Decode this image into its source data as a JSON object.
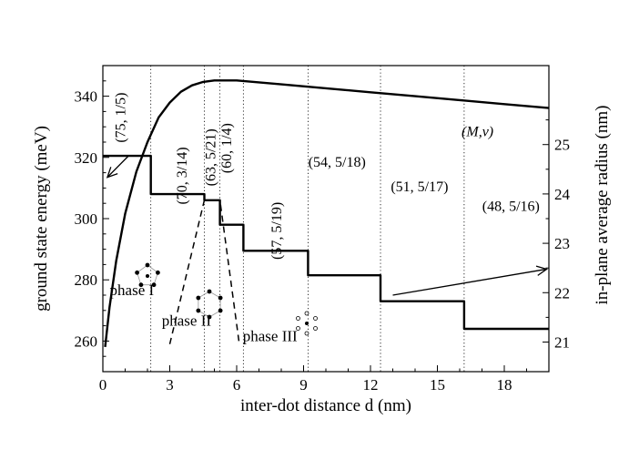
{
  "chart_data": {
    "type": "line",
    "xlabel": "inter-dot distance d (nm)",
    "ylabel": "ground state energy (meV)",
    "y2label": "in-plane average radius (nm)",
    "xlim": [
      0,
      20
    ],
    "ylim": [
      250,
      350
    ],
    "y2lim": [
      20.4,
      26.6
    ],
    "x_ticks": [
      0,
      3,
      6,
      9,
      12,
      15,
      18
    ],
    "y_ticks": [
      260,
      280,
      300,
      320,
      340
    ],
    "y2_ticks": [
      21,
      22,
      23,
      24,
      25
    ],
    "x_tick_labels": [
      "0",
      "3",
      "6",
      "9",
      "12",
      "15",
      "18"
    ],
    "y_tick_labels": [
      "260",
      "280",
      "300",
      "320",
      "340"
    ],
    "y2_tick_labels": [
      "21",
      "22",
      "23",
      "24",
      "25"
    ],
    "series": [
      {
        "axis": "left",
        "style": "step",
        "values": [
          {
            "x": 0.0,
            "y": 320.5
          },
          {
            "x": 2.15,
            "y": 320.5
          },
          {
            "x": 2.15,
            "y": 308
          },
          {
            "x": 4.55,
            "y": 308
          },
          {
            "x": 4.55,
            "y": 306
          },
          {
            "x": 5.25,
            "y": 306
          },
          {
            "x": 5.25,
            "y": 298
          },
          {
            "x": 6.3,
            "y": 298
          },
          {
            "x": 6.3,
            "y": 289.5
          },
          {
            "x": 9.2,
            "y": 289.5
          },
          {
            "x": 9.2,
            "y": 281.5
          },
          {
            "x": 12.45,
            "y": 281.5
          },
          {
            "x": 12.45,
            "y": 273
          },
          {
            "x": 16.2,
            "y": 273
          },
          {
            "x": 16.2,
            "y": 264
          },
          {
            "x": 20.0,
            "y": 264
          }
        ]
      },
      {
        "axis": "right",
        "style": "curve",
        "values": [
          {
            "x": 0.1,
            "y": 20.9
          },
          {
            "x": 0.3,
            "y": 21.7
          },
          {
            "x": 0.6,
            "y": 22.65
          },
          {
            "x": 1.0,
            "y": 23.6
          },
          {
            "x": 1.5,
            "y": 24.45
          },
          {
            "x": 2.0,
            "y": 25.05
          },
          {
            "x": 2.5,
            "y": 25.55
          },
          {
            "x": 3.0,
            "y": 25.85
          },
          {
            "x": 3.5,
            "y": 26.07
          },
          {
            "x": 4.0,
            "y": 26.2
          },
          {
            "x": 4.5,
            "y": 26.27
          },
          {
            "x": 5.0,
            "y": 26.3
          },
          {
            "x": 6.0,
            "y": 26.3
          },
          {
            "x": 8.0,
            "y": 26.22
          },
          {
            "x": 10.0,
            "y": 26.14
          },
          {
            "x": 12.0,
            "y": 26.06
          },
          {
            "x": 14.0,
            "y": 25.98
          },
          {
            "x": 16.0,
            "y": 25.9
          },
          {
            "x": 18.0,
            "y": 25.82
          },
          {
            "x": 20.0,
            "y": 25.74
          }
        ]
      }
    ],
    "transitions": [
      2.15,
      4.55,
      5.25,
      6.3,
      9.2,
      12.45,
      16.2
    ],
    "phase_boundaries": [
      {
        "from": [
          3.0,
          259
        ],
        "to": [
          4.55,
          306
        ]
      },
      {
        "from": [
          6.1,
          260
        ],
        "to": [
          5.25,
          306
        ]
      }
    ],
    "annotations": [
      {
        "text": "(75, 1/5)",
        "x": 1.0,
        "y": 333
      },
      {
        "text": "(70, 3/14)",
        "x": 3.75,
        "y": 314
      },
      {
        "text": "(63, 5/21)",
        "x": 5.05,
        "y": 320
      },
      {
        "text": "(60, 1/4)",
        "x": 5.75,
        "y": 323
      },
      {
        "text": "(57, 5/19)",
        "x": 8.0,
        "y": 296
      },
      {
        "text": "(54, 5/18)",
        "x": 10.5,
        "y": 317
      },
      {
        "text": "(51, 5/17)",
        "x": 14.2,
        "y": 309
      },
      {
        "text": "(48, 5/16)",
        "x": 18.3,
        "y": 302.5
      },
      {
        "text": "(M,ν)",
        "x": 16.8,
        "y": 327
      }
    ],
    "phases": [
      {
        "label": "phase I",
        "x": 1.3,
        "y": 275
      },
      {
        "label": "phase II",
        "x": 3.75,
        "y": 265
      },
      {
        "label": "phase III",
        "x": 7.5,
        "y": 260
      }
    ],
    "arrows": [
      {
        "from": [
          1.15,
          320.5
        ],
        "to": [
          0.2,
          313.5
        ]
      },
      {
        "from": [
          13.0,
          275
        ],
        "to": [
          19.9,
          283.5
        ]
      }
    ]
  }
}
